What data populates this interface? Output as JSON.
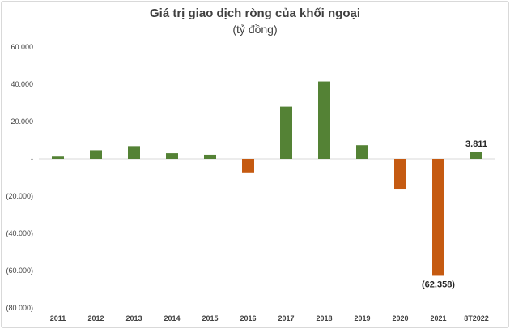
{
  "chart_data": {
    "type": "bar",
    "title": "Giá trị giao dịch ròng của khối ngoại",
    "subtitle": "(tỷ đồng)",
    "categories": [
      "2011",
      "2012",
      "2013",
      "2014",
      "2015",
      "2016",
      "2017",
      "2018",
      "2019",
      "2020",
      "2021",
      "8T2022"
    ],
    "values": [
      1200,
      4600,
      6800,
      3000,
      2200,
      -7300,
      28000,
      41500,
      7300,
      -16100,
      -62358,
      3811
    ],
    "ylim": [
      -80000,
      60000
    ],
    "yticks": [
      60000,
      40000,
      20000,
      0,
      -20000,
      -40000,
      -60000,
      -80000
    ],
    "ytick_labels": [
      "60.000",
      "40.000",
      "20.000",
      "-",
      "(20.000)",
      "(40.000)",
      "(60.000)",
      "(80.000)"
    ],
    "data_labels": [
      {
        "index": 10,
        "text": "(62.358)"
      },
      {
        "index": 11,
        "text": "3.811"
      }
    ],
    "colors": {
      "positive": "#548235",
      "negative": "#c55a11"
    },
    "grid": false,
    "legend": "none"
  }
}
